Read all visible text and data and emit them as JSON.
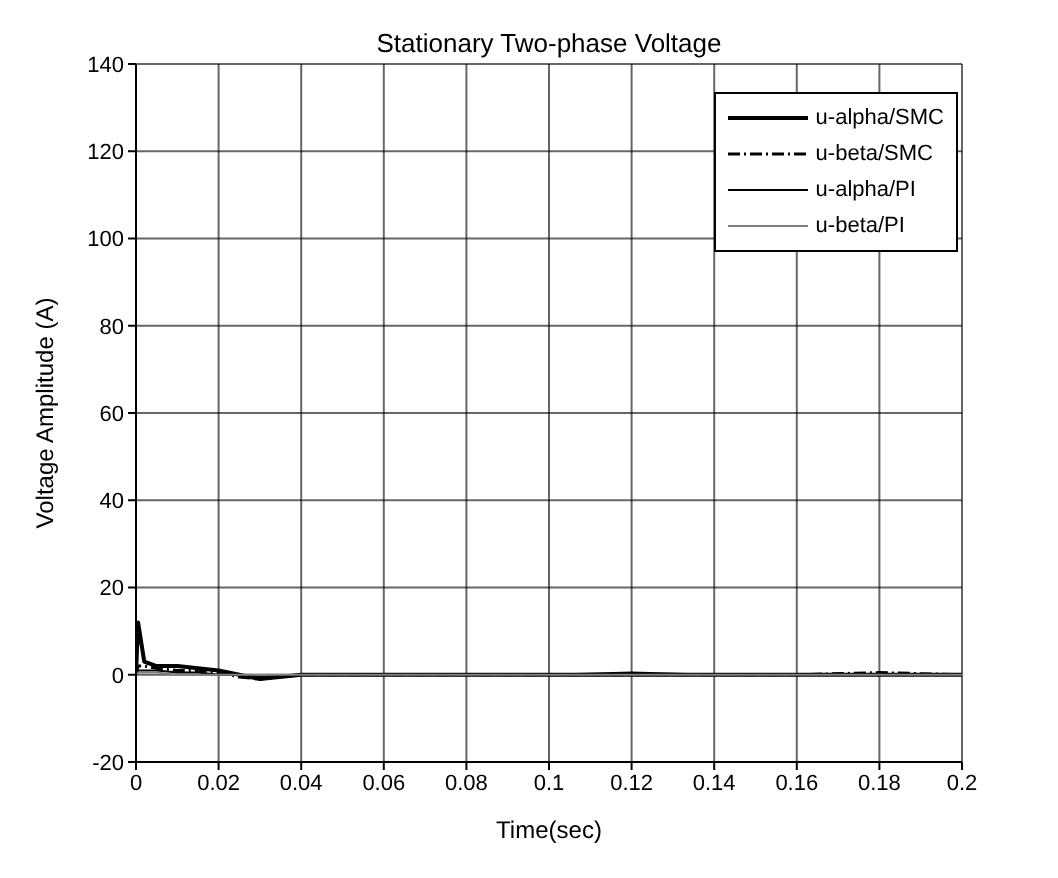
{
  "chart_data": {
    "type": "line",
    "title": "Stationary Two-phase Voltage",
    "xlabel": "Time(sec)",
    "ylabel": "Voltage Amplitude (A)",
    "x": [
      0,
      0.0005,
      0.002,
      0.005,
      0.01,
      0.015,
      0.02,
      0.025,
      0.03,
      0.04,
      0.06,
      0.08,
      0.1,
      0.12,
      0.14,
      0.16,
      0.18,
      0.2
    ],
    "series": [
      {
        "name": "u-alpha/SMC",
        "color": "#000000",
        "line_style": "solid",
        "values": [
          0,
          12,
          3,
          2,
          2,
          1.5,
          1,
          0,
          -1,
          0,
          0,
          0,
          0,
          0,
          0,
          0,
          0,
          0
        ]
      },
      {
        "name": "u-beta/SMC",
        "color": "#000000",
        "line_style": "dashed",
        "values": [
          0,
          2,
          2,
          1.5,
          1,
          1,
          0.5,
          -0.5,
          -1,
          0,
          0,
          0,
          0,
          0,
          0,
          0,
          0.5,
          0
        ]
      },
      {
        "name": "u-alpha/PI",
        "color": "#000000",
        "line_style": "solid",
        "values": [
          0,
          1,
          1,
          1,
          0.5,
          0.5,
          0,
          0,
          -0.5,
          0,
          0,
          0,
          0,
          0.5,
          0,
          0,
          0,
          0
        ]
      },
      {
        "name": "u-beta/PI",
        "color": "#808080",
        "line_style": "solid",
        "values": [
          0,
          0.5,
          0.5,
          0.5,
          0,
          0,
          0,
          0,
          0,
          0,
          0,
          0,
          0,
          0,
          0,
          0,
          0,
          0
        ]
      }
    ],
    "xlim": [
      0,
      0.2
    ],
    "xticks": [
      0,
      0.02,
      0.04,
      0.06,
      0.08,
      0.1,
      0.12,
      0.14,
      0.16,
      0.18,
      0.2
    ],
    "ylim": [
      -20,
      140
    ],
    "yticks": [
      -20,
      0,
      20,
      40,
      60,
      80,
      100,
      120,
      140
    ],
    "grid": true,
    "legend": "top right"
  }
}
